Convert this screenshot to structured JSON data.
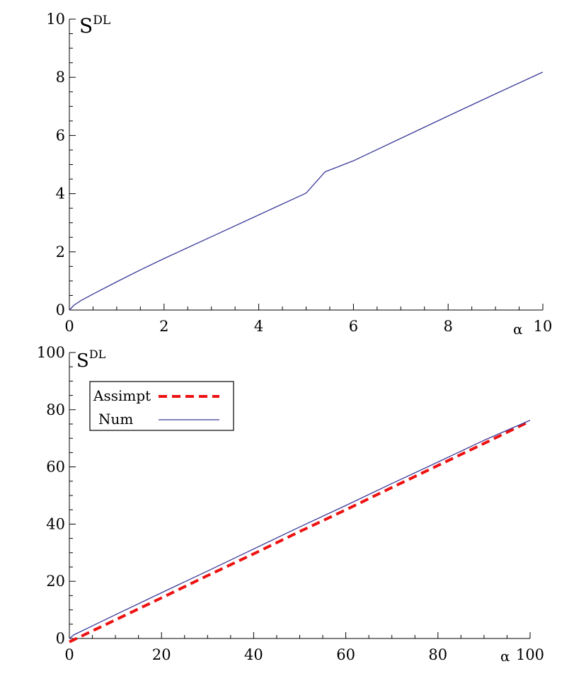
{
  "chart_data": [
    {
      "type": "line",
      "title": "",
      "ylabel_base": "S",
      "ylabel_sup": "DL",
      "xlabel": "α",
      "xlim": [
        0,
        10
      ],
      "ylim": [
        0,
        10
      ],
      "xticks": [
        0,
        2,
        4,
        6,
        8,
        10
      ],
      "yticks": [
        0,
        2,
        4,
        6,
        8,
        10
      ],
      "grid": false,
      "series": [
        {
          "color": "#3a3a9a",
          "style": "solid",
          "x": [
            0,
            0.1,
            0.25,
            0.5,
            1,
            1.5,
            2,
            3,
            4,
            5,
            5.4,
            6,
            7,
            8,
            9,
            10
          ],
          "y": [
            0,
            0.17,
            0.33,
            0.55,
            0.97,
            1.38,
            1.77,
            2.52,
            3.27,
            4.02,
            4.75,
            5.13,
            5.9,
            6.67,
            7.43,
            8.18
          ]
        }
      ]
    },
    {
      "type": "line",
      "title": "",
      "ylabel_base": "S",
      "ylabel_sup": "DL",
      "xlabel": "α",
      "xlim": [
        0,
        100
      ],
      "ylim": [
        0,
        100
      ],
      "xticks": [
        0,
        20,
        40,
        60,
        80,
        100
      ],
      "yticks": [
        0,
        20,
        40,
        60,
        80,
        100
      ],
      "grid": false,
      "legend_position": "top-left",
      "series": [
        {
          "name": "Assimpt",
          "color": "#ee1111",
          "style": "dashed",
          "x": [
            0,
            10,
            20,
            30,
            40,
            50,
            60,
            70,
            80,
            90,
            100
          ],
          "y": [
            -1.2,
            6.5,
            14.2,
            22.0,
            29.6,
            37.4,
            45.0,
            52.8,
            60.5,
            68.2,
            76.0
          ]
        },
        {
          "name": "Num",
          "color": "#3a3a9a",
          "style": "solid",
          "x": [
            0,
            1,
            5,
            10,
            20,
            30,
            40,
            50,
            60,
            70,
            80,
            90,
            100
          ],
          "y": [
            0,
            1.3,
            4.4,
            8.3,
            16.0,
            23.6,
            31.3,
            39.0,
            46.5,
            54.2,
            61.7,
            69.3,
            76.3
          ]
        }
      ]
    }
  ]
}
